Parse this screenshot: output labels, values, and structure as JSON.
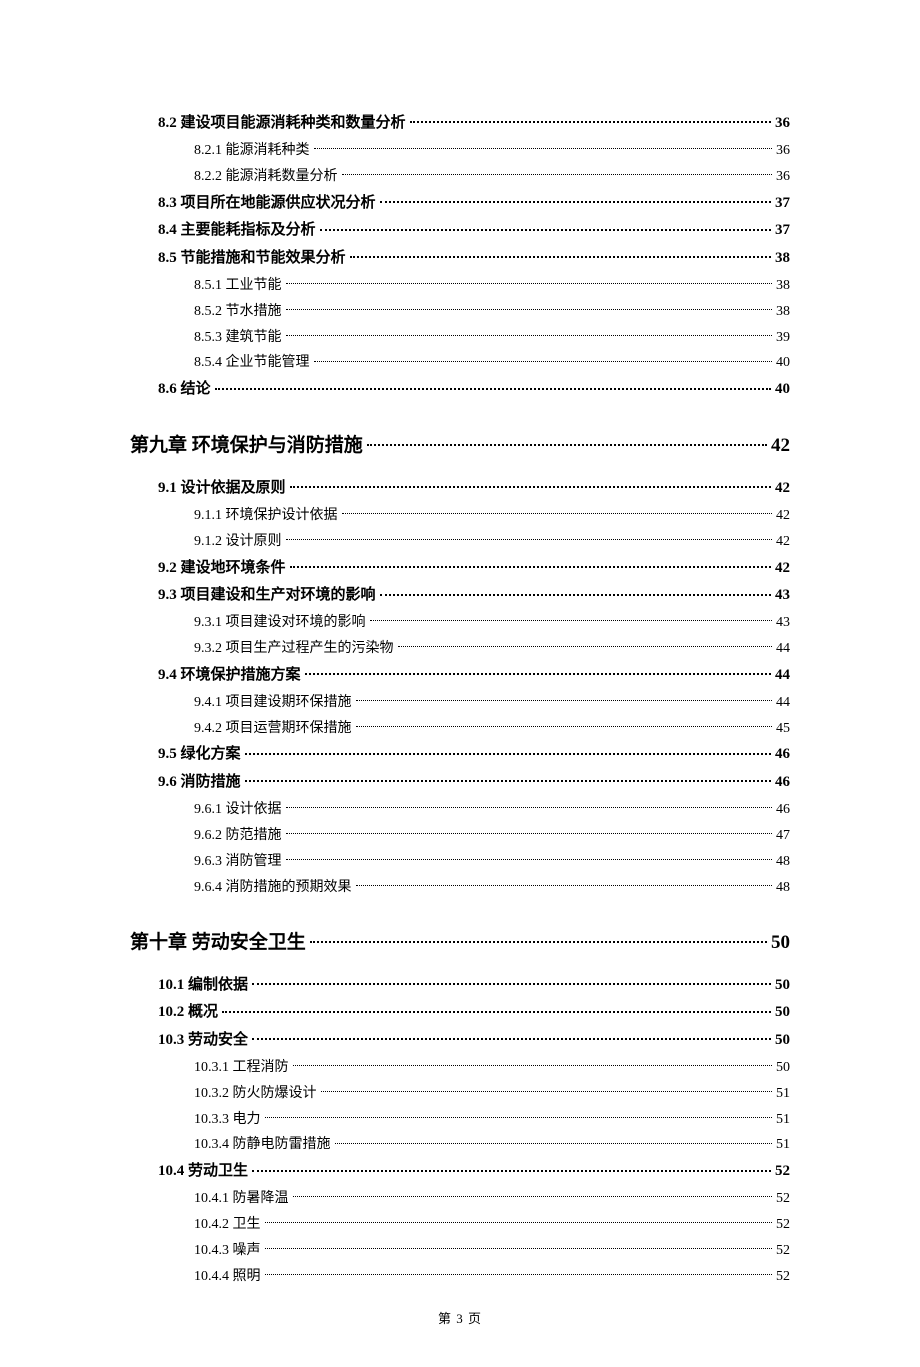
{
  "footer": "第 3 页",
  "entries": [
    {
      "level": "section",
      "label": "8.2 建设项目能源消耗种类和数量分析",
      "page": "36"
    },
    {
      "level": "sub",
      "label": "8.2.1 能源消耗种类",
      "page": "36"
    },
    {
      "level": "sub",
      "label": "8.2.2 能源消耗数量分析",
      "page": "36"
    },
    {
      "level": "section",
      "label": "8.3 项目所在地能源供应状况分析",
      "page": "37"
    },
    {
      "level": "section",
      "label": "8.4 主要能耗指标及分析",
      "page": "37"
    },
    {
      "level": "section",
      "label": "8.5 节能措施和节能效果分析",
      "page": "38"
    },
    {
      "level": "sub",
      "label": "8.5.1 工业节能",
      "page": "38"
    },
    {
      "level": "sub",
      "label": "8.5.2 节水措施",
      "page": "38"
    },
    {
      "level": "sub",
      "label": "8.5.3 建筑节能",
      "page": "39"
    },
    {
      "level": "sub",
      "label": "8.5.4 企业节能管理",
      "page": "40"
    },
    {
      "level": "section",
      "label": "8.6 结论",
      "page": "40"
    },
    {
      "level": "chapter",
      "label": "第九章  环境保护与消防措施",
      "page": "42"
    },
    {
      "level": "section",
      "label": "9.1 设计依据及原则",
      "page": "42"
    },
    {
      "level": "sub",
      "label": "9.1.1 环境保护设计依据",
      "page": "42"
    },
    {
      "level": "sub",
      "label": "9.1.2 设计原则",
      "page": "42"
    },
    {
      "level": "section",
      "label": "9.2 建设地环境条件",
      "page": "42"
    },
    {
      "level": "section",
      "label": "9.3  项目建设和生产对环境的影响",
      "page": "43"
    },
    {
      "level": "sub",
      "label": "9.3.1  项目建设对环境的影响",
      "page": "43"
    },
    {
      "level": "sub",
      "label": "9.3.2  项目生产过程产生的污染物",
      "page": "44"
    },
    {
      "level": "section",
      "label": "9.4  环境保护措施方案",
      "page": "44"
    },
    {
      "level": "sub",
      "label": "9.4.1  项目建设期环保措施",
      "page": "44"
    },
    {
      "level": "sub",
      "label": "9.4.2  项目运营期环保措施",
      "page": "45"
    },
    {
      "level": "section",
      "label": "9.5 绿化方案",
      "page": "46"
    },
    {
      "level": "section",
      "label": "9.6 消防措施",
      "page": "46"
    },
    {
      "level": "sub",
      "label": "9.6.1 设计依据",
      "page": "46"
    },
    {
      "level": "sub",
      "label": "9.6.2 防范措施",
      "page": "47"
    },
    {
      "level": "sub",
      "label": "9.6.3 消防管理",
      "page": "48"
    },
    {
      "level": "sub",
      "label": "9.6.4 消防措施的预期效果",
      "page": "48"
    },
    {
      "level": "chapter",
      "label": "第十章  劳动安全卫生",
      "page": "50"
    },
    {
      "level": "section",
      "label": "10.1  编制依据",
      "page": "50"
    },
    {
      "level": "section",
      "label": "10.2 概况",
      "page": "50"
    },
    {
      "level": "section",
      "label": "10.3  劳动安全",
      "page": "50"
    },
    {
      "level": "sub",
      "label": "10.3.1 工程消防",
      "page": "50"
    },
    {
      "level": "sub",
      "label": "10.3.2 防火防爆设计",
      "page": "51"
    },
    {
      "level": "sub",
      "label": "10.3.3 电力",
      "page": "51"
    },
    {
      "level": "sub",
      "label": "10.3.4 防静电防雷措施",
      "page": "51"
    },
    {
      "level": "section",
      "label": "10.4 劳动卫生",
      "page": "52"
    },
    {
      "level": "sub",
      "label": "10.4.1 防暑降温",
      "page": "52"
    },
    {
      "level": "sub",
      "label": "10.4.2 卫生",
      "page": "52"
    },
    {
      "level": "sub",
      "label": "10.4.3 噪声",
      "page": "52"
    },
    {
      "level": "sub",
      "label": "10.4.4 照明",
      "page": "52"
    }
  ]
}
